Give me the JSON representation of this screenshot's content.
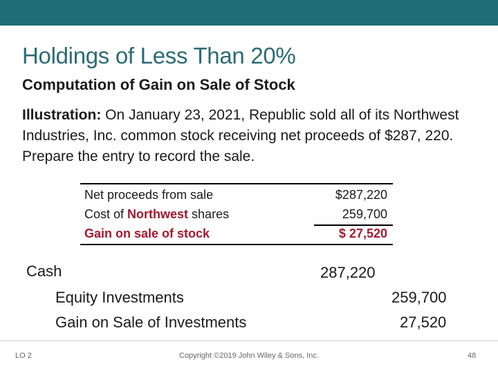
{
  "slide": {
    "title": "Holdings of Less Than 20%",
    "subtitle": "Computation of Gain on Sale of Stock",
    "illustration_label": "Illustration:",
    "illustration_text": " On January 23, 2021, Republic sold all of its Northwest Industries, Inc. common stock receiving net proceeds of $287, 220. Prepare the entry to record the sale."
  },
  "computation": {
    "rows": [
      {
        "label": "Net proceeds from sale",
        "value": "$287,220"
      },
      {
        "label_prefix": "Cost of ",
        "label_highlight": "Northwest",
        "label_suffix": " shares",
        "value": "259,700"
      },
      {
        "label": "Gain on sale of stock",
        "value": "$ 27,520"
      }
    ]
  },
  "journal_entry": {
    "line1": {
      "account": "Cash",
      "debit": "287,220"
    },
    "line2": {
      "account": "Equity Investments",
      "credit": "259,700"
    },
    "line3": {
      "account": "Gain on Sale of Investments",
      "credit": "27,520"
    }
  },
  "footer": {
    "lo": "LO 2",
    "copyright": "Copyright ©2019 John Wiley & Sons, Inc.",
    "page": "48"
  },
  "colors": {
    "header_bar": "#1f6e75",
    "title": "#2c6b73",
    "highlight": "#a3192f"
  }
}
